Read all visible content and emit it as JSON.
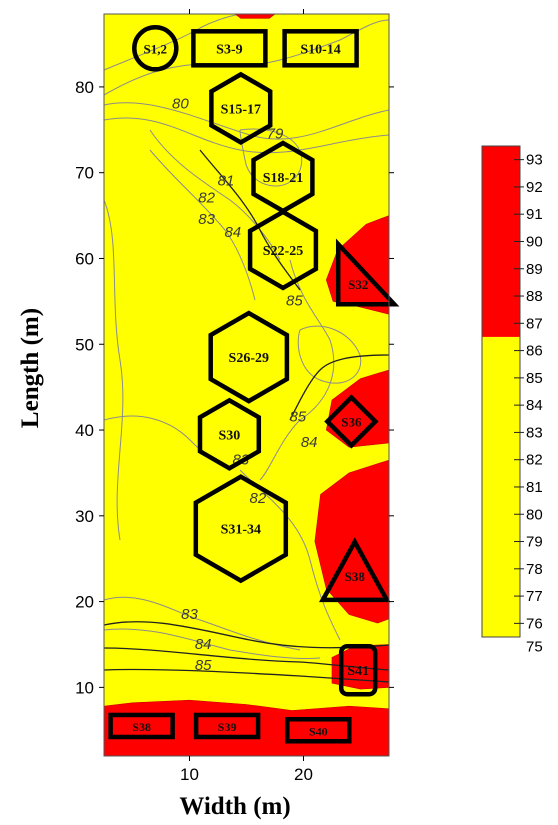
{
  "chart_data": {
    "type": "heatmap",
    "title": "",
    "xlabel": "Width (m)",
    "ylabel": "Length (m)",
    "xlim": [
      2.5,
      27.5
    ],
    "ylim": [
      2.0,
      88.5
    ],
    "x_ticks": [
      10,
      20
    ],
    "y_ticks": [
      10,
      20,
      30,
      40,
      50,
      60,
      70,
      80
    ],
    "colorbar": {
      "levels": [
        75,
        76,
        77,
        78,
        79,
        80,
        81,
        82,
        83,
        84,
        85,
        86,
        87,
        88,
        89,
        90,
        91,
        92,
        93
      ],
      "low_color": "#ffff00",
      "high_color": "#ff0000",
      "threshold": 86
    },
    "contour_labels": [
      {
        "text": "80",
        "x": 9.2,
        "y": 77.5
      },
      {
        "text": "79",
        "x": 17.5,
        "y": 74.0
      },
      {
        "text": "81",
        "x": 13.2,
        "y": 68.5
      },
      {
        "text": "82",
        "x": 11.5,
        "y": 66.5
      },
      {
        "text": "83",
        "x": 11.5,
        "y": 64.0
      },
      {
        "text": "84",
        "x": 13.8,
        "y": 62.5
      },
      {
        "text": "85",
        "x": 19.2,
        "y": 54.5
      },
      {
        "text": "85",
        "x": 19.5,
        "y": 41.0
      },
      {
        "text": "84",
        "x": 20.5,
        "y": 38.0
      },
      {
        "text": "83",
        "x": 14.5,
        "y": 36.0
      },
      {
        "text": "82",
        "x": 16.0,
        "y": 31.5
      },
      {
        "text": "83",
        "x": 10.0,
        "y": 18.0
      },
      {
        "text": "84",
        "x": 11.2,
        "y": 14.5
      },
      {
        "text": "85",
        "x": 11.2,
        "y": 12.0
      }
    ],
    "zones": [
      {
        "label": "S1,2",
        "shape": "circle",
        "x": 7.0,
        "y": 84.5
      },
      {
        "label": "S3-9",
        "shape": "rectangle",
        "x": 13.5,
        "y": 84.5
      },
      {
        "label": "S10-14",
        "shape": "rectangle",
        "x": 21.5,
        "y": 84.5
      },
      {
        "label": "S15-17",
        "shape": "hexagon",
        "x": 14.5,
        "y": 77.5
      },
      {
        "label": "S18-21",
        "shape": "hexagon",
        "x": 18.2,
        "y": 69.5
      },
      {
        "label": "S22-25",
        "shape": "hexagon",
        "x": 18.2,
        "y": 61.0
      },
      {
        "label": "S32",
        "shape": "triangle",
        "x": 24.8,
        "y": 57.0
      },
      {
        "label": "S26-29",
        "shape": "hexagon",
        "x": 15.2,
        "y": 48.5
      },
      {
        "label": "S36",
        "shape": "diamond",
        "x": 24.2,
        "y": 41.0
      },
      {
        "label": "S30",
        "shape": "hexagon",
        "x": 13.5,
        "y": 39.5
      },
      {
        "label": "S31-34",
        "shape": "hexagon",
        "x": 14.5,
        "y": 28.5
      },
      {
        "label": "S38",
        "shape": "triangle",
        "x": 24.5,
        "y": 23.0
      },
      {
        "label": "S41",
        "shape": "rectangle",
        "x": 24.8,
        "y": 12.0
      },
      {
        "label": "S38",
        "shape": "rectangle",
        "x": 5.8,
        "y": 5.5
      },
      {
        "label": "S39",
        "shape": "rectangle",
        "x": 13.3,
        "y": 5.5
      },
      {
        "label": "S40",
        "shape": "rectangle",
        "x": 21.3,
        "y": 5.0
      }
    ],
    "hot_regions": [
      {
        "name": "top-edge",
        "polygon": [
          [
            14.0,
            88.5
          ],
          [
            17.5,
            88.5
          ],
          [
            17.0,
            88.0
          ],
          [
            14.5,
            88.0
          ]
        ]
      },
      {
        "name": "s32-region",
        "polygon": [
          [
            27.5,
            65.0
          ],
          [
            25.5,
            64.0
          ],
          [
            23.0,
            61.0
          ],
          [
            22.0,
            57.5
          ],
          [
            22.6,
            55.0
          ],
          [
            24.5,
            54.5
          ],
          [
            27.5,
            53.5
          ]
        ]
      },
      {
        "name": "s36-region",
        "polygon": [
          [
            27.5,
            47.0
          ],
          [
            25.0,
            46.0
          ],
          [
            22.5,
            43.5
          ],
          [
            22.0,
            40.0
          ],
          [
            24.0,
            38.0
          ],
          [
            27.5,
            38.5
          ]
        ]
      },
      {
        "name": "s38-region",
        "polygon": [
          [
            27.5,
            36.5
          ],
          [
            24.0,
            35.0
          ],
          [
            21.5,
            32.5
          ],
          [
            21.0,
            27.0
          ],
          [
            22.0,
            21.5
          ],
          [
            24.0,
            18.5
          ],
          [
            26.5,
            17.5
          ],
          [
            27.5,
            18.0
          ]
        ]
      },
      {
        "name": "s41-region",
        "polygon": [
          [
            27.5,
            15.0
          ],
          [
            24.5,
            14.8
          ],
          [
            22.5,
            13.5
          ],
          [
            22.5,
            10.5
          ],
          [
            25.0,
            9.8
          ],
          [
            27.5,
            10.0
          ]
        ]
      },
      {
        "name": "bottom-band",
        "polygon": [
          [
            2.5,
            2.0
          ],
          [
            27.5,
            2.0
          ],
          [
            27.5,
            7.5
          ],
          [
            24.0,
            7.8
          ],
          [
            19.0,
            7.3
          ],
          [
            15.0,
            8.0
          ],
          [
            10.0,
            8.5
          ],
          [
            5.0,
            8.2
          ],
          [
            2.5,
            7.8
          ]
        ]
      }
    ]
  }
}
